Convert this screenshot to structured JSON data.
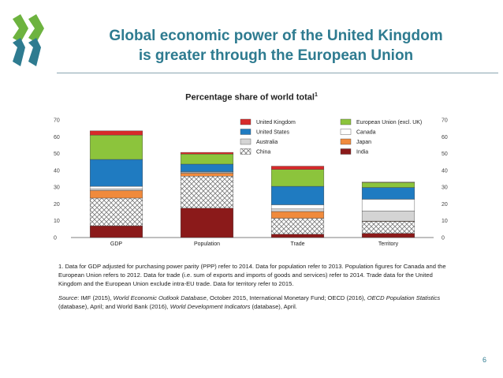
{
  "slide": {
    "title_line1": "Global economic power of the United Kingdom",
    "title_line2": "is greater through the European Union",
    "page_number": "6"
  },
  "chart_data": {
    "type": "bar",
    "stacked": true,
    "title": "Percentage share of world total",
    "title_superscript": "1",
    "categories": [
      "GDP",
      "Population",
      "Trade",
      "Territory"
    ],
    "ylim": [
      0,
      70
    ],
    "yticks": [
      0,
      10,
      20,
      30,
      40,
      50,
      60,
      70
    ],
    "legend_position": "top-right",
    "grid": false,
    "series": [
      {
        "name": "India",
        "color": "#8b1a1a",
        "values": [
          7,
          17.5,
          2,
          2.5
        ]
      },
      {
        "name": "China",
        "color": "pattern",
        "values": [
          16.5,
          19,
          9.5,
          7
        ]
      },
      {
        "name": "Japan",
        "color": "#f08a3c",
        "values": [
          4.5,
          1.8,
          4,
          0.3
        ]
      },
      {
        "name": "Australia",
        "color": "#d4d4d4",
        "values": [
          1,
          0.4,
          1.5,
          6
        ]
      },
      {
        "name": "Canada",
        "color": "#ffffff",
        "values": [
          1.5,
          0.5,
          2.5,
          7
        ]
      },
      {
        "name": "United States",
        "color": "#1f7bc1",
        "values": [
          16,
          4.5,
          11,
          7
        ]
      },
      {
        "name": "European Union (excl. UK)",
        "color": "#8cc43c",
        "values": [
          14.5,
          6,
          10,
          3
        ]
      },
      {
        "name": "United Kingdom",
        "color": "#d72a2a",
        "values": [
          2.5,
          1,
          2,
          0.2
        ]
      }
    ],
    "legend_order": [
      "United Kingdom",
      "European Union (excl. UK)",
      "United States",
      "Canada",
      "Australia",
      "Japan",
      "China",
      "India"
    ]
  },
  "notes": {
    "footnote": "1. Data for GDP adjusted for purchasing power parity (PPP) refer to 2014. Data for population refer to 2013. Population figures for Canada and the European Union refers to 2012. Data for trade (i.e. sum of exports and imports of goods and services) refer to 2014. Trade data for the United Kingdom and the European Union exclude intra-EU trade. Data for territory refer to 2015.",
    "source_label": "Source",
    "source_1": ": IMF (2015), ",
    "source_2": "World Economic Outlook Database",
    "source_3": ", October 2015, International Monetary Fund; OECD (2016), ",
    "source_4": "OECD Population Statistics",
    "source_5": " (database), April; and World Bank (2016), ",
    "source_6": "World Development Indicators",
    "source_7": " (database), April."
  }
}
